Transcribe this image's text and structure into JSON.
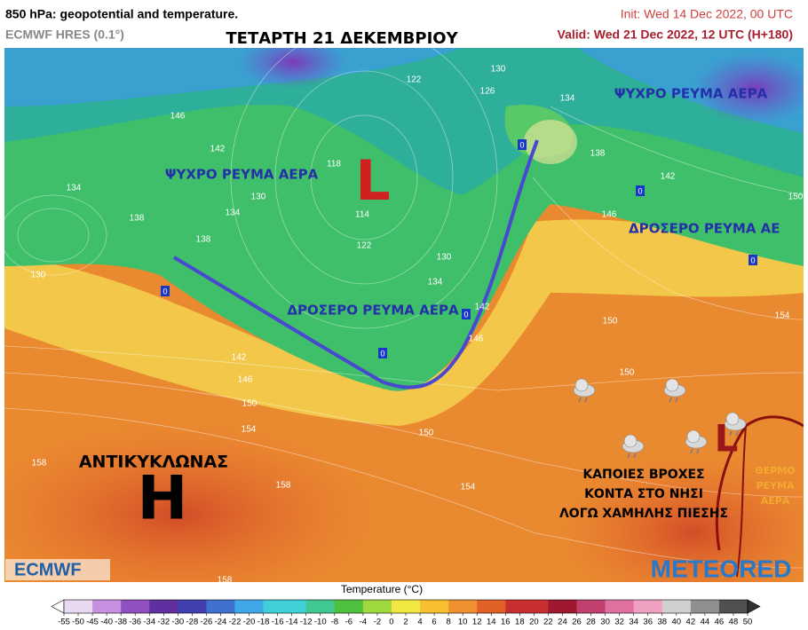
{
  "header": {
    "title": "850 hPa: geopotential and temperature.",
    "model": "ECMWF HRES (0.1°)",
    "day": "ΤΕΤΑΡΤΗ 21 ΔΕΚΕΜΒΡΙΟΥ",
    "init": "Init: Wed 14 Dec 2022, 00 UTC",
    "valid": "Valid: Wed 21 Dec 2022, 12 UTC (H+180)"
  },
  "map": {
    "cold_stream": [
      "ΨΥΧΡΟ ΡΕΥΜΑ ΑΕΡΑ",
      "ΨΥΧΡΟ ΡΕΥΜΑ ΑΕΡΑ"
    ],
    "cool_stream": [
      "ΔΡΟΣΕΡΟ ΡΕΥΜΑ ΑΕΡΑ",
      "ΔΡΟΣΕΡΟ ΡΕΥΜΑ ΑΕ"
    ],
    "low": [
      "L",
      "L"
    ],
    "anticyclone": "ΑΝΤΙΚΥΚΛΩΝΑΣ",
    "high": "H",
    "rain_note": [
      "ΚΑΠΟΙΕΣ ΒΡΟΧΕΣ",
      "ΚΟΝΤΑ ΣΤΟ ΝΗΣΙ",
      "ΛΟΓΩ ΧΑΜΗΛΗΣ ΠΙΕΣΗΣ"
    ],
    "warm_stream": [
      "ΘΕΡΜΟ",
      "ΡΕΥΜΑ",
      "ΑΕΡΑ"
    ],
    "contour_labels": [
      130,
      122,
      126,
      134,
      146,
      142,
      138,
      118,
      130,
      134,
      134,
      138,
      114,
      138,
      122,
      146,
      142,
      150,
      130,
      130,
      134,
      142,
      146,
      150,
      154,
      142,
      146,
      150,
      154,
      150,
      150,
      158,
      158,
      154,
      158
    ],
    "zero_labels": [
      0,
      0,
      0,
      0,
      0,
      0
    ]
  },
  "logos": {
    "left": "ECMWF",
    "right": "METEORED"
  },
  "colorbar": {
    "title": "Temperature (°C)",
    "ticks": [
      -55,
      -50,
      -45,
      -40,
      -38,
      -36,
      -34,
      -32,
      -30,
      -28,
      -26,
      -24,
      -22,
      -20,
      -18,
      -16,
      -14,
      -12,
      -10,
      -8,
      -6,
      -4,
      -2,
      0,
      2,
      4,
      6,
      8,
      10,
      12,
      14,
      16,
      18,
      20,
      22,
      24,
      26,
      28,
      30,
      32,
      34,
      36,
      38,
      40,
      42,
      44,
      46,
      48,
      50
    ]
  }
}
